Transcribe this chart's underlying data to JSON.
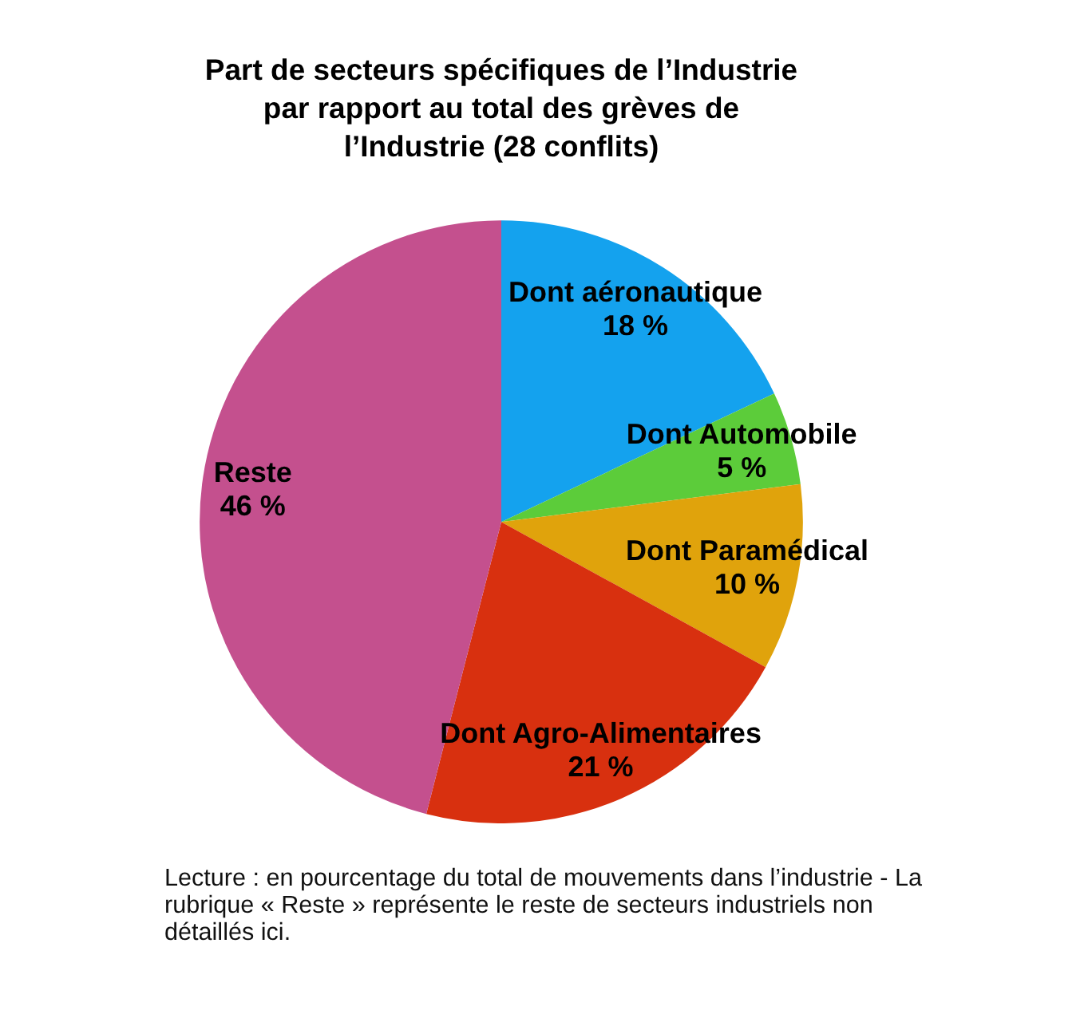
{
  "chart_data": {
    "type": "pie",
    "title": "Part de secteurs spécifiques de l’Industrie\npar rapport au total des grèves de\nl’Industrie (28 conflits)",
    "categories": [
      "Dont aéronautique",
      "Dont Automobile",
      "Dont Paramédical",
      "Dont Agro-Alimentaires",
      "Reste"
    ],
    "values": [
      18,
      5,
      10,
      21,
      46
    ],
    "value_labels": [
      "18 %",
      "5 %",
      "10 %",
      "21 %",
      "46 %"
    ],
    "colors": [
      "#14a2ee",
      "#5ccc3a",
      "#e0a30c",
      "#d8300f",
      "#c4508e"
    ],
    "legend": false,
    "annotations": [
      "Lecture : en pourcentage du total de mouvements dans l’industrie - La rubrique « Reste » représente le reste de secteurs industriels non détaillés ici."
    ]
  }
}
